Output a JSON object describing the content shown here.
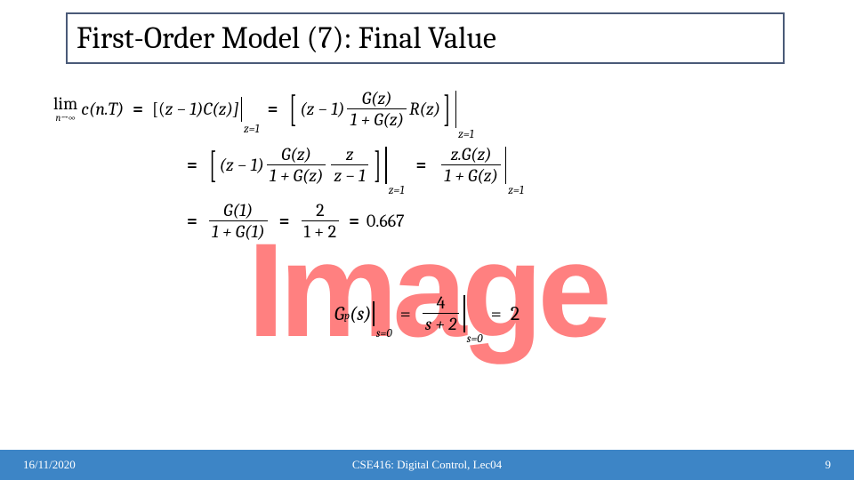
{
  "title": "First-Order Model (7): Final Value",
  "footer": {
    "date": "16/11/2020",
    "course": "CSE416: Digital Control, Lec04",
    "page": "9"
  },
  "watermark": "Image",
  "eq": {
    "lim_op": "lim",
    "lim_below": "n→∞",
    "cnT": "c(n.T)",
    "eqsym": "=",
    "line1_a_open": "[(",
    "line1_a_zm1": "z − 1)",
    "line1_a_Cz": "C(z)]",
    "eval_z1": "z=1",
    "zm1": "(z − 1)",
    "Gz": "G(z)",
    "one_plus_Gz": "1 + G(z)",
    "Rz": "R(z)",
    "z": "z",
    "z_minus_1_den": "z − 1",
    "zGz": "z.G(z)",
    "G1": "G(1)",
    "one_plus_G1": "1 + G(1)",
    "two": "2",
    "one_plus_2": "1 + 2",
    "result": "0.667",
    "Gp": "G",
    "Gp_sub": "p",
    "Gp_arg": "(s)",
    "eval_s0": "s=0",
    "four": "4",
    "s_plus_2": "s + 2",
    "gp_result": "2"
  },
  "colors": {
    "title_border": "#4a5a78",
    "footer_bg": "#3d85c6",
    "watermark": "#ff1a1a"
  }
}
